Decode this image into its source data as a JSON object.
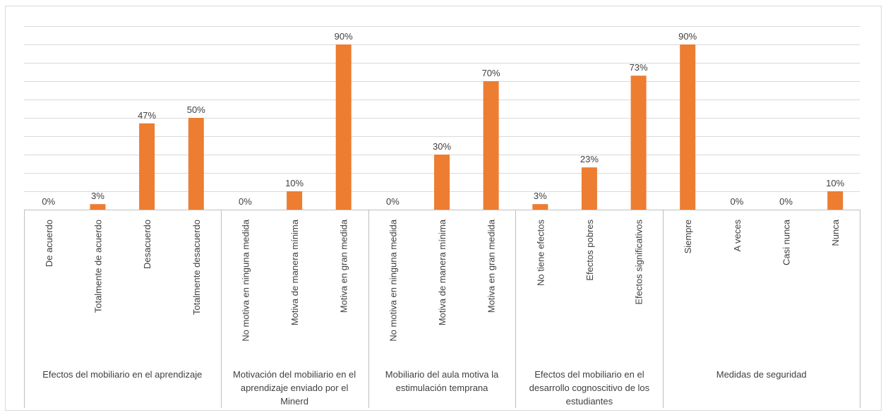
{
  "chart_data": {
    "type": "bar",
    "ylim": [
      0,
      100
    ],
    "grid": true,
    "bar_color": "#ed7d31",
    "groups": [
      {
        "label_lines": [
          "Efectos del mobiliario en el aprendizaje"
        ],
        "categories": [
          "De acuerdo",
          "Totalmente de acuerdo",
          "Desacuerdo",
          "Totalmente desacuerdo"
        ],
        "values": [
          0,
          3,
          47,
          50
        ],
        "labels": [
          "0%",
          "3%",
          "47%",
          "50%"
        ]
      },
      {
        "label_lines": [
          "Motivación del mobiliario en el",
          "aprendizaje enviado por el",
          "Minerd"
        ],
        "categories": [
          "No motiva en ninguna medida",
          "Motiva de manera mínima",
          "Motiva en gran medida"
        ],
        "values": [
          0,
          10,
          90
        ],
        "labels": [
          "0%",
          "10%",
          "90%"
        ]
      },
      {
        "label_lines": [
          "Mobiliario del aula motiva la",
          "estimulación temprana"
        ],
        "categories": [
          "No motiva en ninguna medida",
          "Motiva de manera mínima",
          "Motiva en gran medida"
        ],
        "values": [
          0,
          30,
          70
        ],
        "labels": [
          "0%",
          "30%",
          "70%"
        ]
      },
      {
        "label_lines": [
          "Efectos del mobiliario en el",
          "desarrollo cognoscitivo de los",
          "estudiantes"
        ],
        "categories": [
          "No tiene efectos",
          "Efectos pobres",
          "Efectos significativos"
        ],
        "values": [
          3,
          23,
          73
        ],
        "labels": [
          "3%",
          "23%",
          "73%"
        ]
      },
      {
        "label_lines": [
          "Medidas de seguridad"
        ],
        "categories": [
          "Siempre",
          "A veces",
          "Casi nunca",
          "Nunca"
        ],
        "values": [
          90,
          0,
          0,
          10
        ],
        "labels": [
          "90%",
          "0%",
          "0%",
          "10%"
        ]
      }
    ]
  }
}
